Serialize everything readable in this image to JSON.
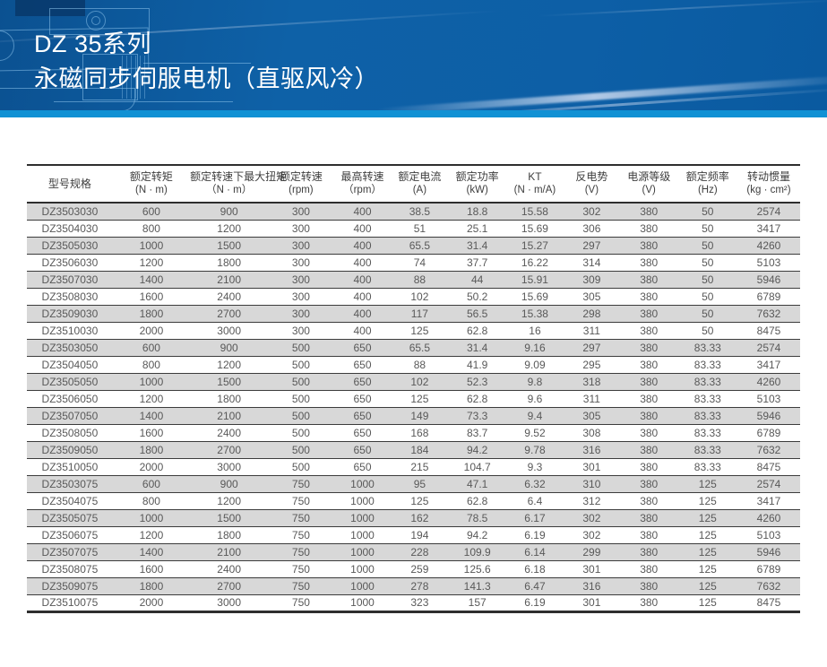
{
  "banner": {
    "title_line1": "DZ 35系列",
    "title_line2": "永磁同步伺服电机（直驱风冷）"
  },
  "colors": {
    "banner_blue": "#0d5fa6",
    "banner_strip_blue": "#1191d4",
    "row_stripe_gray": "#d8d8d8",
    "table_border": "#2e2e2e",
    "cell_text": "#595959"
  },
  "table": {
    "columns": [
      {
        "label": "型号规格",
        "unit": ""
      },
      {
        "label": "额定转矩",
        "unit": "(N · m)"
      },
      {
        "label": "额定转速下最大扭矩",
        "unit": "（N · m）"
      },
      {
        "label": "额定转速",
        "unit": "(rpm)"
      },
      {
        "label": "最高转速",
        "unit": "（rpm）"
      },
      {
        "label": "额定电流",
        "unit": "(A)"
      },
      {
        "label": "额定功率",
        "unit": "(kW)"
      },
      {
        "label": "KT",
        "unit": "(N · m/A)"
      },
      {
        "label": "反电势",
        "unit": "(V)"
      },
      {
        "label": "电源等级",
        "unit": "(V)"
      },
      {
        "label": "额定频率",
        "unit": "(Hz)"
      },
      {
        "label": "转动惯量",
        "unit": "(kg · cm²)"
      }
    ],
    "rows": [
      [
        "DZ3503030",
        "600",
        "900",
        "300",
        "400",
        "38.5",
        "18.8",
        "15.58",
        "302",
        "380",
        "50",
        "2574"
      ],
      [
        "DZ3504030",
        "800",
        "1200",
        "300",
        "400",
        "51",
        "25.1",
        "15.69",
        "306",
        "380",
        "50",
        "3417"
      ],
      [
        "DZ3505030",
        "1000",
        "1500",
        "300",
        "400",
        "65.5",
        "31.4",
        "15.27",
        "297",
        "380",
        "50",
        "4260"
      ],
      [
        "DZ3506030",
        "1200",
        "1800",
        "300",
        "400",
        "74",
        "37.7",
        "16.22",
        "314",
        "380",
        "50",
        "5103"
      ],
      [
        "DZ3507030",
        "1400",
        "2100",
        "300",
        "400",
        "88",
        "44",
        "15.91",
        "309",
        "380",
        "50",
        "5946"
      ],
      [
        "DZ3508030",
        "1600",
        "2400",
        "300",
        "400",
        "102",
        "50.2",
        "15.69",
        "305",
        "380",
        "50",
        "6789"
      ],
      [
        "DZ3509030",
        "1800",
        "2700",
        "300",
        "400",
        "117",
        "56.5",
        "15.38",
        "298",
        "380",
        "50",
        "7632"
      ],
      [
        "DZ3510030",
        "2000",
        "3000",
        "300",
        "400",
        "125",
        "62.8",
        "16",
        "311",
        "380",
        "50",
        "8475"
      ],
      [
        "DZ3503050",
        "600",
        "900",
        "500",
        "650",
        "65.5",
        "31.4",
        "9.16",
        "297",
        "380",
        "83.33",
        "2574"
      ],
      [
        "DZ3504050",
        "800",
        "1200",
        "500",
        "650",
        "88",
        "41.9",
        "9.09",
        "295",
        "380",
        "83.33",
        "3417"
      ],
      [
        "DZ3505050",
        "1000",
        "1500",
        "500",
        "650",
        "102",
        "52.3",
        "9.8",
        "318",
        "380",
        "83.33",
        "4260"
      ],
      [
        "DZ3506050",
        "1200",
        "1800",
        "500",
        "650",
        "125",
        "62.8",
        "9.6",
        "311",
        "380",
        "83.33",
        "5103"
      ],
      [
        "DZ3507050",
        "1400",
        "2100",
        "500",
        "650",
        "149",
        "73.3",
        "9.4",
        "305",
        "380",
        "83.33",
        "5946"
      ],
      [
        "DZ3508050",
        "1600",
        "2400",
        "500",
        "650",
        "168",
        "83.7",
        "9.52",
        "308",
        "380",
        "83.33",
        "6789"
      ],
      [
        "DZ3509050",
        "1800",
        "2700",
        "500",
        "650",
        "184",
        "94.2",
        "9.78",
        "316",
        "380",
        "83.33",
        "7632"
      ],
      [
        "DZ3510050",
        "2000",
        "3000",
        "500",
        "650",
        "215",
        "104.7",
        "9.3",
        "301",
        "380",
        "83.33",
        "8475"
      ],
      [
        "DZ3503075",
        "600",
        "900",
        "750",
        "1000",
        "95",
        "47.1",
        "6.32",
        "310",
        "380",
        "125",
        "2574"
      ],
      [
        "DZ3504075",
        "800",
        "1200",
        "750",
        "1000",
        "125",
        "62.8",
        "6.4",
        "312",
        "380",
        "125",
        "3417"
      ],
      [
        "DZ3505075",
        "1000",
        "1500",
        "750",
        "1000",
        "162",
        "78.5",
        "6.17",
        "302",
        "380",
        "125",
        "4260"
      ],
      [
        "DZ3506075",
        "1200",
        "1800",
        "750",
        "1000",
        "194",
        "94.2",
        "6.19",
        "302",
        "380",
        "125",
        "5103"
      ],
      [
        "DZ3507075",
        "1400",
        "2100",
        "750",
        "1000",
        "228",
        "109.9",
        "6.14",
        "299",
        "380",
        "125",
        "5946"
      ],
      [
        "DZ3508075",
        "1600",
        "2400",
        "750",
        "1000",
        "259",
        "125.6",
        "6.18",
        "301",
        "380",
        "125",
        "6789"
      ],
      [
        "DZ3509075",
        "1800",
        "2700",
        "750",
        "1000",
        "278",
        "141.3",
        "6.47",
        "316",
        "380",
        "125",
        "7632"
      ],
      [
        "DZ3510075",
        "2000",
        "3000",
        "750",
        "1000",
        "323",
        "157",
        "6.19",
        "301",
        "380",
        "125",
        "8475"
      ]
    ]
  }
}
